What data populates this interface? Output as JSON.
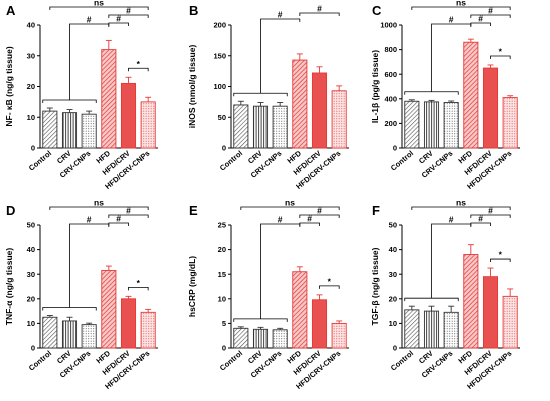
{
  "patterns": {
    "Control": {
      "pattern": "diag",
      "stroke": "#333333"
    },
    "CRV": {
      "pattern": "vert",
      "stroke": "#333333"
    },
    "CRV-CNPs": {
      "pattern": "dots",
      "stroke": "#333333"
    },
    "HFD": {
      "pattern": "diag",
      "stroke": "#e53935"
    },
    "HFD/CRV": {
      "pattern": "solid",
      "stroke": "#e53935"
    },
    "HFD/CRV-CNPs": {
      "pattern": "dots",
      "stroke": "#e53935"
    }
  },
  "chart_data": [
    {
      "type": "bar",
      "letter": "A",
      "ylabel": "NF- κB (ng/g tissue)",
      "categories": [
        "Control",
        "CRV",
        "CRV-CNPs",
        "HFD",
        "HFD/CRV",
        "HFD/CRV-CNPs"
      ],
      "values": [
        12,
        11.5,
        11,
        32,
        21,
        15
      ],
      "errors": [
        1,
        1,
        1,
        3,
        2,
        1.5
      ],
      "ylim": [
        0,
        40
      ],
      "yticks": [
        0,
        10,
        20,
        30,
        40
      ],
      "significance": [
        {
          "label": "ns",
          "from": 0,
          "to": 5
        },
        {
          "label": "#",
          "from": 3,
          "to": 5
        },
        {
          "label": "#",
          "from": 3,
          "to": 4
        },
        {
          "label": "#",
          "group": [
            0,
            1,
            2
          ],
          "to": 3
        },
        {
          "label": "*",
          "from": 4,
          "to": 5
        }
      ]
    },
    {
      "type": "bar",
      "letter": "B",
      "ylabel": "iNOS (nmol/g tissue)",
      "categories": [
        "Control",
        "CRV",
        "CRV-CNPs",
        "HFD",
        "HFD/CRV",
        "HFD/CRV-CNPs"
      ],
      "values": [
        70,
        68,
        68,
        143,
        122,
        93
      ],
      "errors": [
        6,
        6,
        6,
        10,
        10,
        8
      ],
      "ylim": [
        0,
        200
      ],
      "yticks": [
        0,
        50,
        100,
        150,
        200
      ],
      "significance": [
        {
          "label": "#",
          "group": [
            0,
            1,
            2
          ],
          "to": 3
        },
        {
          "label": "#",
          "from": 3,
          "to": 5
        }
      ]
    },
    {
      "type": "bar",
      "letter": "C",
      "ylabel": "IL-1β (pg/g tissue)",
      "categories": [
        "Control",
        "CRV",
        "CRV-CNPs",
        "HFD",
        "HFD/CRV",
        "HFD/CRV-CNPs"
      ],
      "values": [
        380,
        375,
        370,
        860,
        650,
        410
      ],
      "errors": [
        12,
        12,
        12,
        25,
        25,
        15
      ],
      "ylim": [
        0,
        1000
      ],
      "yticks": [
        0,
        200,
        400,
        600,
        800,
        1000
      ],
      "significance": [
        {
          "label": "ns",
          "from": 0,
          "to": 5
        },
        {
          "label": "#",
          "from": 3,
          "to": 5
        },
        {
          "label": "#",
          "from": 3,
          "to": 4
        },
        {
          "label": "#",
          "group": [
            0,
            1,
            2
          ],
          "to": 3
        },
        {
          "label": "*",
          "from": 4,
          "to": 5
        }
      ]
    },
    {
      "type": "bar",
      "letter": "D",
      "ylabel": "TNF-α (ng/g tissue)",
      "categories": [
        "Control",
        "CRV",
        "CRV-CNPs",
        "HFD",
        "HFD/CRV",
        "HFD/CRV-CNPs"
      ],
      "values": [
        12.5,
        11,
        9.5,
        31.5,
        20,
        14.5
      ],
      "errors": [
        0.7,
        1.5,
        0.6,
        1.8,
        1.0,
        1.2
      ],
      "ylim": [
        0,
        50
      ],
      "yticks": [
        0,
        10,
        20,
        30,
        40,
        50
      ],
      "significance": [
        {
          "label": "ns",
          "from": 0,
          "to": 5
        },
        {
          "label": "#",
          "from": 3,
          "to": 5
        },
        {
          "label": "#",
          "from": 3,
          "to": 4
        },
        {
          "label": "#",
          "group": [
            0,
            1,
            2
          ],
          "to": 3
        },
        {
          "label": "*",
          "from": 4,
          "to": 5
        }
      ]
    },
    {
      "type": "bar",
      "letter": "E",
      "ylabel": "hsCRP (mg/dL)",
      "categories": [
        "Control",
        "CRV",
        "CRV-CNPs",
        "HFD",
        "HFD/CRV",
        "HFD/CRV-CNPs"
      ],
      "values": [
        4,
        3.8,
        3.7,
        15.5,
        9.8,
        5
      ],
      "errors": [
        0.3,
        0.4,
        0.3,
        1.0,
        1.0,
        0.5
      ],
      "ylim": [
        0,
        25
      ],
      "yticks": [
        0,
        5,
        10,
        15,
        20,
        25
      ],
      "significance": [
        {
          "label": "ns",
          "from": 0,
          "to": 5
        },
        {
          "label": "#",
          "from": 3,
          "to": 5
        },
        {
          "label": "#",
          "from": 3,
          "to": 4
        },
        {
          "label": "#",
          "group": [
            0,
            1,
            2
          ],
          "to": 3
        },
        {
          "label": "*",
          "from": 4,
          "to": 5
        }
      ]
    },
    {
      "type": "bar",
      "letter": "F",
      "ylabel": "TGF-β (ng/g tissue)",
      "categories": [
        "Control",
        "CRV",
        "CRV-CNPs",
        "HFD",
        "HFD/CRV",
        "HFD/CRV-CNPs"
      ],
      "values": [
        15.5,
        15,
        14.5,
        38,
        29,
        21
      ],
      "errors": [
        1.5,
        2,
        2.5,
        4,
        3.5,
        3
      ],
      "ylim": [
        0,
        50
      ],
      "yticks": [
        0,
        10,
        20,
        30,
        40,
        50
      ],
      "significance": [
        {
          "label": "ns",
          "from": 0,
          "to": 5
        },
        {
          "label": "#",
          "from": 3,
          "to": 5
        },
        {
          "label": "#",
          "from": 3,
          "to": 4
        },
        {
          "label": "#",
          "group": [
            0,
            1,
            2
          ],
          "to": 3
        },
        {
          "label": "*",
          "from": 4,
          "to": 5
        }
      ]
    }
  ]
}
